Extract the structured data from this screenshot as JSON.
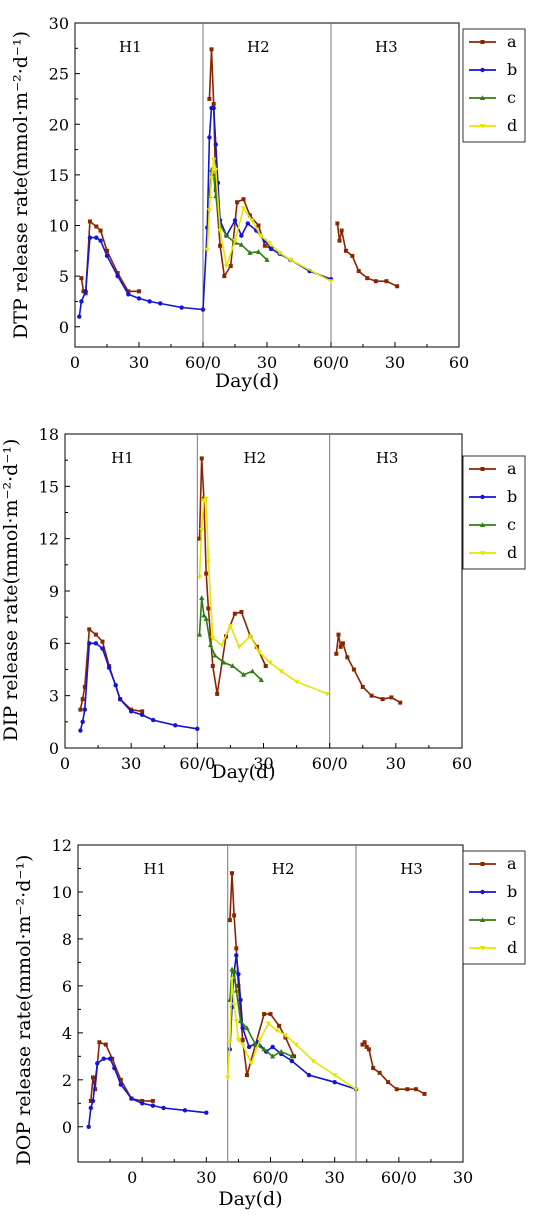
{
  "chart_data": [
    {
      "type": "line",
      "ylabel": "DTP release rate(mmol·m⁻²·d⁻¹)",
      "xlabel": "Day(d)",
      "ylim": [
        -2,
        30
      ],
      "yticks": [
        "0",
        "5",
        "10",
        "15",
        "20",
        "25",
        "30"
      ],
      "xtick_labels": [
        "0",
        "30",
        "60/0",
        "30",
        "60/0",
        "30",
        "60"
      ],
      "regions": [
        "H1",
        "H2",
        "H3"
      ],
      "legend": [
        "a",
        "b",
        "c",
        "d"
      ],
      "colors": {
        "a": "#8B2500",
        "b": "#1414D2",
        "c": "#2E7D12",
        "d": "#E6E600"
      },
      "series": [
        {
          "name": "a",
          "points": [
            [
              3,
              4.8
            ],
            [
              4,
              3.5
            ],
            [
              5,
              3.3
            ],
            [
              7,
              10.4
            ],
            [
              10,
              9.9
            ],
            [
              12,
              9.5
            ],
            [
              15,
              7.5
            ],
            [
              20,
              5.3
            ],
            [
              25,
              3.5
            ],
            [
              30,
              3.5
            ],
            [
              63,
              22.5
            ],
            [
              64,
              27.4
            ],
            [
              65,
              22
            ],
            [
              66,
              13.5
            ],
            [
              68,
              8
            ],
            [
              70,
              5
            ],
            [
              73,
              6
            ],
            [
              76,
              12.3
            ],
            [
              79,
              12.6
            ],
            [
              82,
              11
            ],
            [
              86,
              10
            ],
            [
              89,
              8
            ],
            [
              92,
              7.7
            ],
            [
              123,
              10.2
            ],
            [
              124,
              8.5
            ],
            [
              125,
              9.5
            ],
            [
              127,
              7.5
            ],
            [
              130,
              7
            ],
            [
              133,
              5.5
            ],
            [
              137,
              4.8
            ],
            [
              141,
              4.5
            ],
            [
              146,
              4.5
            ],
            [
              151,
              4
            ]
          ]
        },
        {
          "name": "b",
          "points": [
            [
              2,
              1
            ],
            [
              3,
              2.5
            ],
            [
              5,
              3.5
            ],
            [
              7,
              8.8
            ],
            [
              10,
              8.8
            ],
            [
              12,
              8.5
            ],
            [
              15,
              7
            ],
            [
              20,
              5
            ],
            [
              25,
              3.2
            ],
            [
              30,
              2.8
            ],
            [
              35,
              2.5
            ],
            [
              40,
              2.3
            ],
            [
              50,
              1.9
            ],
            [
              60,
              1.7
            ],
            [
              62,
              9.8
            ],
            [
              63,
              18.7
            ],
            [
              64,
              21.6
            ],
            [
              65,
              21.6
            ],
            [
              66,
              18
            ],
            [
              67,
              14.2
            ],
            [
              68,
              10.5
            ],
            [
              71,
              9
            ],
            [
              75,
              10.5
            ],
            [
              78,
              9
            ],
            [
              81,
              10.2
            ],
            [
              85,
              9.5
            ],
            [
              89,
              8.5
            ],
            [
              92,
              7.7
            ],
            [
              96,
              7.2
            ],
            [
              101,
              6.6
            ],
            [
              110,
              5.5
            ],
            [
              120,
              4.7
            ]
          ]
        },
        {
          "name": "c",
          "points": [
            [
              63,
              12.9
            ],
            [
              64,
              15.5
            ],
            [
              65,
              14.9
            ],
            [
              66,
              12.9
            ],
            [
              68,
              10
            ],
            [
              71,
              9
            ],
            [
              75,
              8.3
            ],
            [
              78,
              8.1
            ],
            [
              82,
              7.3
            ],
            [
              86,
              7.4
            ],
            [
              90,
              6.6
            ]
          ]
        },
        {
          "name": "d",
          "points": [
            [
              62,
              7.6
            ],
            [
              63,
              11.5
            ],
            [
              64,
              14.7
            ],
            [
              65,
              16.5
            ],
            [
              66,
              15.5
            ],
            [
              68,
              9.5
            ],
            [
              71,
              6
            ],
            [
              75,
              8.5
            ],
            [
              79,
              11.7
            ],
            [
              83,
              10.5
            ],
            [
              87,
              9
            ],
            [
              91,
              8.3
            ],
            [
              96,
              7.3
            ],
            [
              101,
              6.6
            ],
            [
              120,
              4.5
            ]
          ]
        }
      ]
    },
    {
      "type": "line",
      "ylabel": "DIP release rate(mmol·m⁻²·d⁻¹)",
      "xlabel": "Day(d)",
      "ylim": [
        0,
        18
      ],
      "yticks": [
        "0",
        "3",
        "6",
        "9",
        "12",
        "15",
        "18"
      ],
      "xtick_labels": [
        "0",
        "30",
        "60/0",
        "30",
        "60/0",
        "30",
        "60"
      ],
      "regions": [
        "H1",
        "H2",
        "H3"
      ],
      "legend": [
        "a",
        "b",
        "c",
        "d"
      ],
      "colors": {
        "a": "#8B2500",
        "b": "#1414D2",
        "c": "#2E7D12",
        "d": "#E6E600"
      },
      "series": [
        {
          "name": "a",
          "points": [
            [
              7,
              2.2
            ],
            [
              8,
              2.8
            ],
            [
              9,
              3.5
            ],
            [
              11,
              6.8
            ],
            [
              14,
              6.5
            ],
            [
              17,
              6.1
            ],
            [
              20,
              4.7
            ],
            [
              25,
              2.8
            ],
            [
              30,
              2.2
            ],
            [
              35,
              2.1
            ],
            [
              61,
              12
            ],
            [
              62,
              16.6
            ],
            [
              63,
              14.3
            ],
            [
              64,
              10
            ],
            [
              65,
              8
            ],
            [
              67,
              4.7
            ],
            [
              69,
              3.1
            ],
            [
              73,
              6.4
            ],
            [
              77,
              7.7
            ],
            [
              80,
              7.8
            ],
            [
              84,
              6.4
            ],
            [
              87,
              5.8
            ],
            [
              91,
              4.7
            ],
            [
              123,
              5.4
            ],
            [
              124,
              6.5
            ],
            [
              125,
              5.8
            ],
            [
              126,
              6
            ],
            [
              128,
              5.2
            ],
            [
              131,
              4.5
            ],
            [
              135,
              3.5
            ],
            [
              139,
              3
            ],
            [
              144,
              2.8
            ],
            [
              148,
              2.9
            ],
            [
              152,
              2.6
            ]
          ]
        },
        {
          "name": "b",
          "points": [
            [
              7,
              1
            ],
            [
              8,
              1.5
            ],
            [
              9,
              2.2
            ],
            [
              11,
              6
            ],
            [
              14,
              6
            ],
            [
              17,
              5.7
            ],
            [
              20,
              4.6
            ],
            [
              23,
              3.6
            ],
            [
              25,
              2.8
            ],
            [
              30,
              2.1
            ],
            [
              35,
              1.9
            ],
            [
              40,
              1.6
            ],
            [
              50,
              1.3
            ],
            [
              60,
              1.1
            ]
          ]
        },
        {
          "name": "c",
          "points": [
            [
              61,
              6.5
            ],
            [
              62,
              8.6
            ],
            [
              63,
              7.6
            ],
            [
              64,
              7.4
            ],
            [
              66,
              5.9
            ],
            [
              68,
              5.3
            ],
            [
              72,
              4.9
            ],
            [
              76,
              4.7
            ],
            [
              81,
              4.2
            ],
            [
              85,
              4.4
            ],
            [
              89,
              3.9
            ]
          ]
        },
        {
          "name": "d",
          "points": [
            [
              61,
              9.8
            ],
            [
              62,
              12.5
            ],
            [
              63,
              14.2
            ],
            [
              64,
              14.3
            ],
            [
              65,
              10.7
            ],
            [
              67,
              6.3
            ],
            [
              71,
              5.9
            ],
            [
              75,
              7
            ],
            [
              79,
              5.8
            ],
            [
              84,
              6.4
            ],
            [
              88,
              5.5
            ],
            [
              93,
              4.9
            ],
            [
              98,
              4.4
            ],
            [
              105,
              3.8
            ],
            [
              119,
              3.1
            ]
          ]
        }
      ]
    },
    {
      "type": "line",
      "ylabel": "DOP release rate(mmol·m⁻²·d⁻¹)",
      "xlabel": "Day(d)",
      "ylim": [
        -1.5,
        12
      ],
      "yticks": [
        "0",
        "2",
        "4",
        "6",
        "8",
        "10",
        "12"
      ],
      "xtick_labels": [
        "0",
        "30",
        "60/0",
        "30",
        "60/0",
        "30"
      ],
      "regions": [
        "H1",
        "H2",
        "H3"
      ],
      "legend": [
        "a",
        "b",
        "c",
        "d"
      ],
      "colors": {
        "a": "#8B2500",
        "b": "#1414D2",
        "c": "#2E7D12",
        "d": "#E6E600"
      },
      "series": [
        {
          "name": "a",
          "points": [
            [
              -4,
              1.1
            ],
            [
              -3,
              2.1
            ],
            [
              -2,
              1.6
            ],
            [
              0,
              3.6
            ],
            [
              3,
              3.5
            ],
            [
              6,
              2.9
            ],
            [
              10,
              2
            ],
            [
              15,
              1.2
            ],
            [
              20,
              1.1
            ],
            [
              25,
              1.1
            ],
            [
              61,
              8.8
            ],
            [
              62,
              10.8
            ],
            [
              63,
              9
            ],
            [
              64,
              7.6
            ],
            [
              65,
              6
            ],
            [
              67,
              3.7
            ],
            [
              69,
              2.2
            ],
            [
              73,
              3.5
            ],
            [
              77,
              4.8
            ],
            [
              80,
              4.8
            ],
            [
              84,
              4.3
            ],
            [
              87,
              3.8
            ],
            [
              91,
              3
            ],
            [
              123,
              3.5
            ],
            [
              124,
              3.6
            ],
            [
              125,
              3.4
            ],
            [
              126,
              3.3
            ],
            [
              128,
              2.5
            ],
            [
              131,
              2.3
            ],
            [
              135,
              1.9
            ],
            [
              139,
              1.6
            ],
            [
              144,
              1.6
            ],
            [
              148,
              1.6
            ],
            [
              152,
              1.4
            ]
          ]
        },
        {
          "name": "b",
          "points": [
            [
              -5,
              0
            ],
            [
              -4,
              0.8
            ],
            [
              -3,
              1.1
            ],
            [
              -1,
              2.7
            ],
            [
              2,
              2.9
            ],
            [
              5,
              2.9
            ],
            [
              7,
              2.5
            ],
            [
              10,
              1.8
            ],
            [
              15,
              1.2
            ],
            [
              20,
              1
            ],
            [
              25,
              0.9
            ],
            [
              30,
              0.8
            ],
            [
              40,
              0.7
            ],
            [
              50,
              0.6
            ],
            [
              61,
              3.3
            ],
            [
              62,
              5.1
            ],
            [
              63,
              6.6
            ],
            [
              64,
              7.3
            ],
            [
              65,
              6.5
            ],
            [
              66,
              5.4
            ],
            [
              67,
              4.2
            ],
            [
              70,
              3.4
            ],
            [
              74,
              3.6
            ],
            [
              78,
              3.2
            ],
            [
              81,
              3.4
            ],
            [
              85,
              3.1
            ],
            [
              90,
              2.8
            ],
            [
              98,
              2.2
            ],
            [
              110,
              1.9
            ],
            [
              120,
              1.6
            ]
          ]
        },
        {
          "name": "c",
          "points": [
            [
              61,
              5.4
            ],
            [
              62,
              6.7
            ],
            [
              63,
              6.6
            ],
            [
              64,
              5.8
            ],
            [
              66,
              4.5
            ],
            [
              69,
              4.2
            ],
            [
              73,
              3.5
            ],
            [
              77,
              3.3
            ],
            [
              81,
              3
            ],
            [
              85,
              3.2
            ],
            [
              90,
              3
            ]
          ]
        },
        {
          "name": "d",
          "points": [
            [
              60,
              2.1
            ],
            [
              61,
              3.6
            ],
            [
              62,
              6.3
            ],
            [
              63,
              5.2
            ],
            [
              64,
              4.5
            ],
            [
              65,
              3.7
            ],
            [
              67,
              3.5
            ],
            [
              71,
              2.7
            ],
            [
              75,
              3.7
            ],
            [
              79,
              4.4
            ],
            [
              83,
              4.1
            ],
            [
              87,
              3.9
            ],
            [
              92,
              3.5
            ],
            [
              100,
              2.8
            ],
            [
              110,
              2.2
            ],
            [
              120,
              1.6
            ]
          ]
        }
      ]
    }
  ]
}
